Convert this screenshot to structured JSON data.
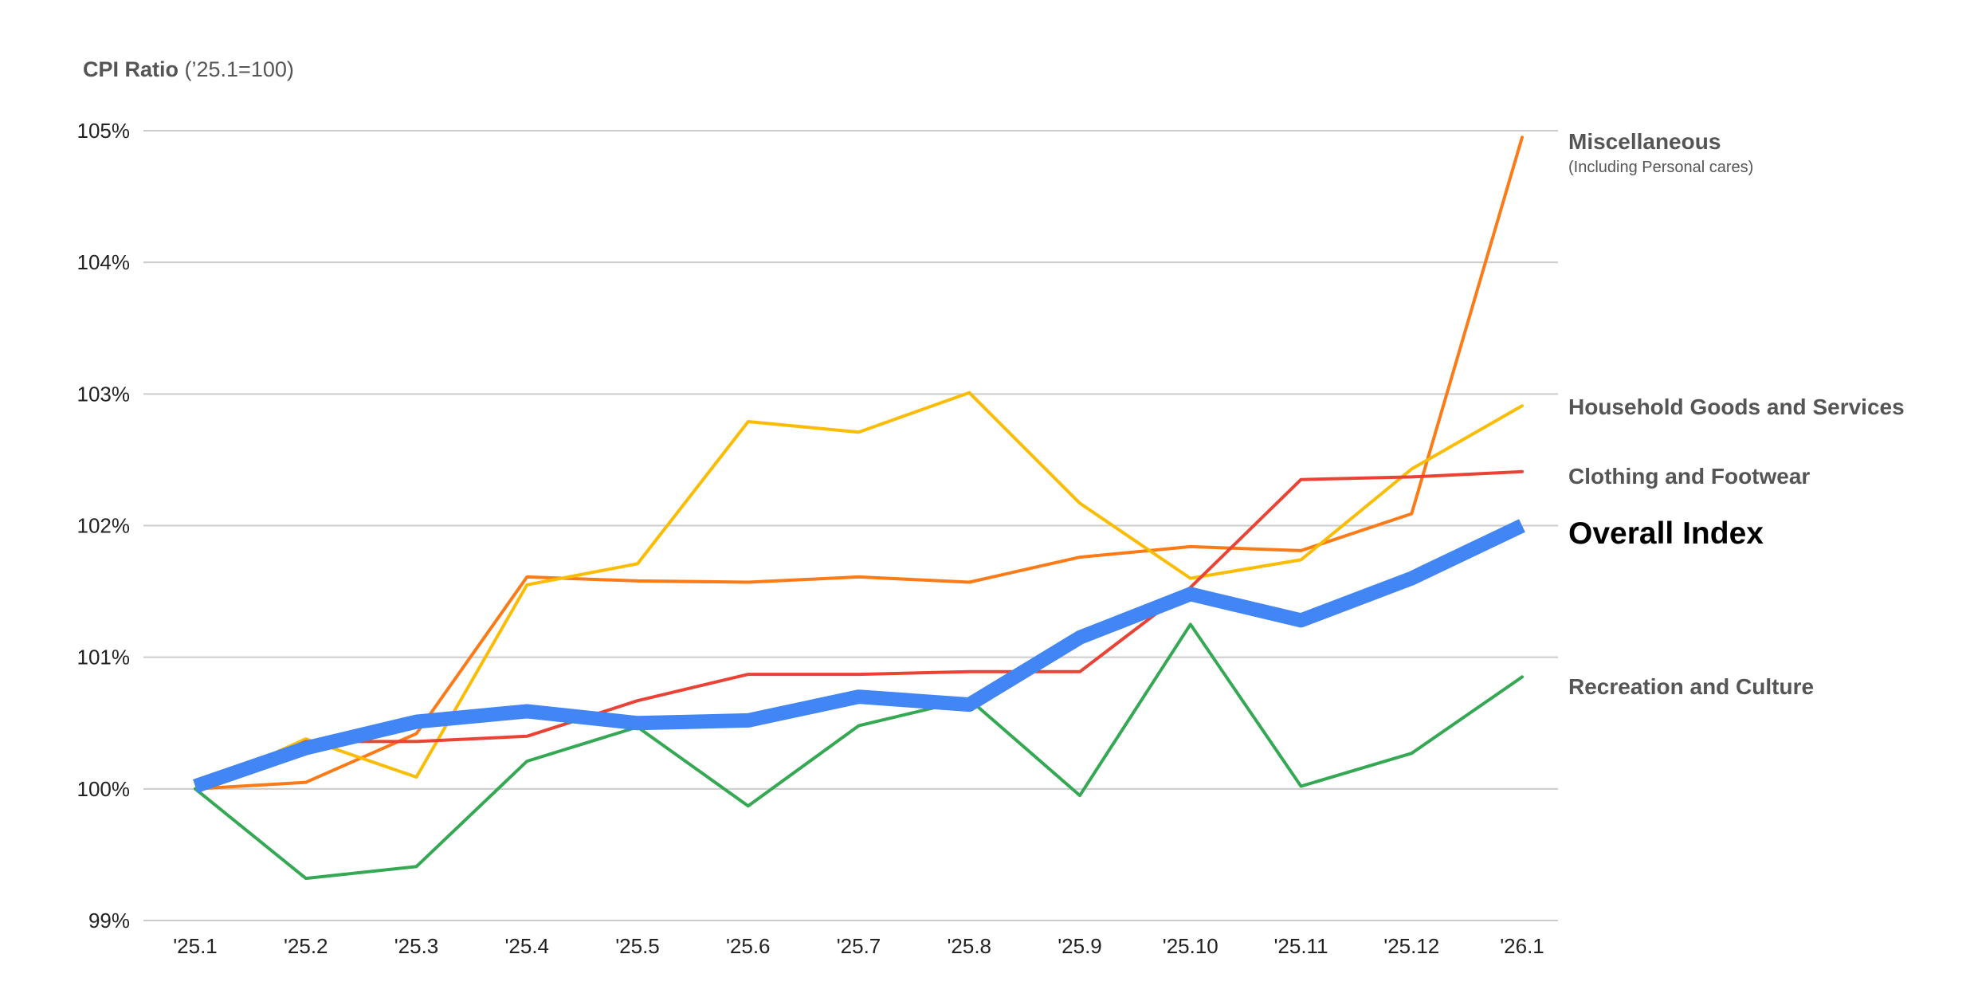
{
  "chart_data": {
    "type": "line",
    "title_bold": "CPI Ratio",
    "title_rest": " (’25.1=100)",
    "ylim": [
      99,
      105
    ],
    "y_ticks": [
      "99%",
      "100%",
      "101%",
      "102%",
      "103%",
      "104%",
      "105%"
    ],
    "categories": [
      "'25.1",
      "'25.2",
      "'25.3",
      "'25.4",
      "'25.5",
      "'25.6",
      "'25.7",
      "'25.8",
      "'25.9",
      "'25.10",
      "'25.11",
      "'25.12",
      "'26.1"
    ],
    "grid": true,
    "legend": "right (labels at line ends)",
    "series": [
      {
        "name": "Miscellaneous",
        "subtitle": "(Including Personal cares)",
        "color": "#FA7B17",
        "values": [
          100.0,
          100.05,
          100.42,
          101.61,
          101.58,
          101.57,
          101.61,
          101.57,
          101.76,
          101.84,
          101.81,
          102.09,
          104.95
        ]
      },
      {
        "name": "Household Goods and Services",
        "color": "#FBBC04",
        "values": [
          100.0,
          100.38,
          100.09,
          101.55,
          101.71,
          102.79,
          102.71,
          103.01,
          102.17,
          101.6,
          101.74,
          102.43,
          102.91
        ]
      },
      {
        "name": "Clothing and Footwear",
        "color": "#EA4335",
        "values": [
          100.0,
          100.36,
          100.36,
          100.4,
          100.67,
          100.87,
          100.87,
          100.89,
          100.89,
          101.53,
          102.35,
          102.37,
          102.41
        ]
      },
      {
        "name": "Overall Index",
        "color": "#4285F4",
        "emphasis": true,
        "values": [
          100.02,
          100.31,
          100.51,
          100.59,
          100.5,
          100.52,
          100.7,
          100.64,
          101.15,
          101.48,
          101.28,
          101.6,
          102.0
        ]
      },
      {
        "name": "Recreation and Culture",
        "color": "#34A853",
        "values": [
          100.0,
          99.32,
          99.41,
          100.21,
          100.47,
          99.87,
          100.48,
          100.68,
          99.95,
          101.25,
          100.02,
          100.27,
          100.85
        ]
      }
    ]
  }
}
